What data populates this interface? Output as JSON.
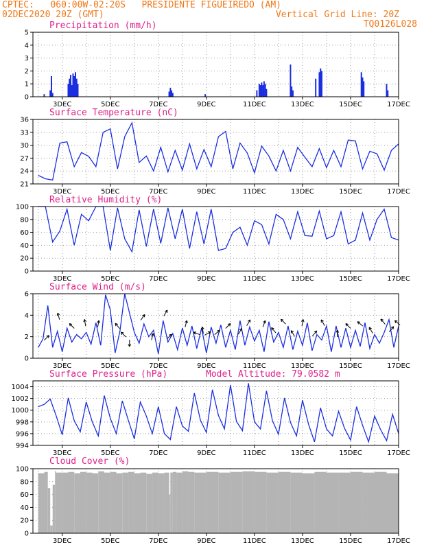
{
  "header": {
    "line1": "CPTEC:   060:00W-02:20S   PRESIDENTE FIGUEIREDO (AM)",
    "line2_left": "02DEC2020 20Z (GMT)",
    "line2_right": "Vertical Grid Line: 20Z",
    "line3_right": "TQ0126L028"
  },
  "x_tick_labels": [
    "3DEC",
    "5DEC",
    "7DEC",
    "9DEC",
    "11DEC",
    "13DEC",
    "15DEC",
    "17DEC"
  ],
  "x_tick_days": [
    3,
    5,
    7,
    9,
    11,
    13,
    15,
    17
  ],
  "colors": {
    "line": "#1a2ee0",
    "bar": "#1a2ee0",
    "cloud": "#b4b4b4",
    "title": "#e0208a",
    "header": "#f07818"
  },
  "chart_data": [
    {
      "type": "bar",
      "id": "precip",
      "title": "Precipitation (mm/h)",
      "ylim": [
        0,
        5
      ],
      "yticks": [
        0,
        1,
        2,
        3,
        4,
        5
      ],
      "x": [
        2.25,
        2.5,
        2.55,
        2.6,
        3.25,
        3.3,
        3.35,
        3.4,
        3.45,
        3.5,
        3.55,
        3.6,
        3.65,
        7.45,
        7.5,
        7.55,
        7.6,
        8.95,
        11.1,
        11.2,
        11.25,
        11.3,
        11.35,
        11.4,
        11.45,
        11.5,
        12.5,
        12.55,
        12.6,
        13.55,
        13.7,
        13.75,
        13.8,
        15.45,
        15.5,
        15.55,
        16.5,
        16.55
      ],
      "values": [
        0.2,
        0.5,
        1.6,
        0.3,
        1.0,
        1.4,
        1.7,
        0.9,
        1.8,
        1.6,
        1.9,
        1.4,
        1.0,
        0.4,
        0.7,
        0.5,
        0.3,
        0.2,
        0.5,
        1.0,
        0.9,
        1.1,
        0.9,
        1.2,
        1.0,
        0.6,
        2.5,
        0.8,
        0.5,
        1.4,
        1.9,
        2.2,
        2.0,
        1.9,
        1.5,
        1.2,
        1.0,
        0.5
      ]
    },
    {
      "type": "line",
      "id": "temp",
      "title": "Surface Temperature (nC)",
      "ylim": [
        21,
        36
      ],
      "yticks": [
        21,
        24,
        27,
        30,
        33,
        36
      ],
      "x": [
        2.0,
        2.3,
        2.6,
        2.9,
        3.2,
        3.5,
        3.8,
        4.1,
        4.4,
        4.7,
        5.0,
        5.3,
        5.6,
        5.9,
        6.2,
        6.5,
        6.8,
        7.1,
        7.4,
        7.7,
        8.0,
        8.3,
        8.6,
        8.9,
        9.2,
        9.5,
        9.8,
        10.1,
        10.4,
        10.7,
        11.0,
        11.3,
        11.6,
        11.9,
        12.2,
        12.5,
        12.8,
        13.1,
        13.4,
        13.7,
        14.0,
        14.3,
        14.6,
        14.9,
        15.2,
        15.5,
        15.8,
        16.1,
        16.4,
        16.7,
        17.0
      ],
      "values": [
        23.0,
        22.2,
        21.9,
        30.5,
        30.8,
        25.0,
        28.3,
        27.4,
        25.0,
        33.0,
        33.8,
        24.5,
        32.0,
        35.2,
        26.0,
        27.5,
        24.0,
        29.5,
        23.8,
        28.8,
        24.2,
        30.3,
        24.5,
        29.0,
        25.0,
        32.0,
        33.2,
        24.5,
        30.5,
        28.2,
        23.6,
        29.8,
        27.5,
        24.0,
        28.8,
        24.0,
        29.5,
        27.2,
        25.0,
        29.2,
        24.8,
        28.8,
        25.0,
        31.2,
        31.0,
        24.5,
        28.6,
        28.0,
        24.2,
        28.8,
        30.3
      ]
    },
    {
      "type": "line",
      "id": "rh",
      "title": "Relative Humidity (%)",
      "ylim": [
        0,
        100
      ],
      "yticks": [
        0,
        20,
        40,
        60,
        80,
        100
      ],
      "x": [
        2.0,
        2.3,
        2.6,
        2.9,
        3.2,
        3.5,
        3.8,
        4.1,
        4.4,
        4.7,
        5.0,
        5.3,
        5.6,
        5.9,
        6.2,
        6.5,
        6.8,
        7.1,
        7.4,
        7.7,
        8.0,
        8.3,
        8.6,
        8.9,
        9.2,
        9.5,
        9.8,
        10.1,
        10.4,
        10.7,
        11.0,
        11.3,
        11.6,
        11.9,
        12.2,
        12.5,
        12.8,
        13.1,
        13.4,
        13.7,
        14.0,
        14.3,
        14.6,
        14.9,
        15.2,
        15.5,
        15.8,
        16.1,
        16.4,
        16.7,
        17.0
      ],
      "values": [
        100,
        100,
        45,
        62,
        96,
        40,
        88,
        78,
        100,
        100,
        32,
        98,
        50,
        30,
        95,
        38,
        96,
        43,
        98,
        50,
        96,
        35,
        92,
        42,
        96,
        32,
        35,
        60,
        68,
        40,
        78,
        72,
        42,
        88,
        80,
        50,
        92,
        55,
        54,
        93,
        50,
        55,
        92,
        42,
        48,
        90,
        48,
        80,
        96,
        52,
        48
      ]
    },
    {
      "type": "line",
      "id": "wind",
      "title": "Surface Wind (m/s)",
      "ylim": [
        0,
        6
      ],
      "yticks": [
        0,
        2,
        4,
        6
      ],
      "x": [
        2.0,
        2.2,
        2.4,
        2.6,
        2.8,
        3.0,
        3.2,
        3.4,
        3.6,
        3.8,
        4.0,
        4.2,
        4.4,
        4.6,
        4.8,
        5.0,
        5.2,
        5.4,
        5.6,
        5.8,
        6.0,
        6.2,
        6.4,
        6.6,
        6.8,
        7.0,
        7.2,
        7.4,
        7.6,
        7.8,
        8.0,
        8.2,
        8.4,
        8.6,
        8.8,
        9.0,
        9.2,
        9.4,
        9.6,
        9.8,
        10.0,
        10.2,
        10.4,
        10.6,
        10.8,
        11.0,
        11.2,
        11.4,
        11.6,
        11.8,
        12.0,
        12.2,
        12.4,
        12.6,
        12.8,
        13.0,
        13.2,
        13.4,
        13.6,
        13.8,
        14.0,
        14.2,
        14.4,
        14.6,
        14.8,
        15.0,
        15.2,
        15.4,
        15.6,
        15.8,
        16.0,
        16.2,
        16.4,
        16.6,
        16.8,
        17.0
      ],
      "values": [
        1.0,
        1.8,
        4.9,
        1.0,
        2.5,
        0.6,
        2.8,
        1.5,
        2.2,
        1.8,
        2.4,
        1.3,
        3.3,
        1.2,
        5.9,
        4.5,
        0.5,
        2.5,
        6.0,
        4.2,
        2.4,
        1.4,
        3.2,
        2.0,
        2.6,
        0.4,
        3.5,
        1.5,
        2.3,
        0.8,
        2.8,
        1.2,
        3.0,
        0.9,
        2.8,
        0.5,
        2.9,
        1.4,
        3.1,
        1.0,
        2.6,
        0.8,
        3.5,
        1.2,
        2.9,
        1.6,
        2.6,
        0.6,
        3.4,
        1.5,
        2.4,
        1.0,
        3.0,
        0.8,
        2.5,
        1.2,
        3.3,
        0.7,
        2.2,
        1.7,
        3.0,
        0.6,
        3.0,
        1.0,
        2.8,
        1.0,
        2.6,
        1.1,
        3.3,
        0.9,
        2.2,
        1.4,
        2.4,
        3.6,
        1.0,
        3.0
      ]
    },
    {
      "type": "line",
      "id": "pres",
      "title": "Surface Pressure (hPa)",
      "annotation": "Model Altitude: 79.0582 m",
      "ylim": [
        994,
        1005
      ],
      "yticks": [
        994,
        996,
        998,
        1000,
        1002,
        1004
      ],
      "x": [
        2.0,
        2.25,
        2.5,
        2.75,
        3.0,
        3.25,
        3.5,
        3.75,
        4.0,
        4.25,
        4.5,
        4.75,
        5.0,
        5.25,
        5.5,
        5.75,
        6.0,
        6.25,
        6.5,
        6.75,
        7.0,
        7.25,
        7.5,
        7.75,
        8.0,
        8.25,
        8.5,
        8.75,
        9.0,
        9.25,
        9.5,
        9.75,
        10.0,
        10.25,
        10.5,
        10.75,
        11.0,
        11.25,
        11.5,
        11.75,
        12.0,
        12.25,
        12.5,
        12.75,
        13.0,
        13.25,
        13.5,
        13.75,
        14.0,
        14.25,
        14.5,
        14.75,
        15.0,
        15.25,
        15.5,
        15.75,
        16.0,
        16.25,
        16.5,
        16.75,
        17.0
      ],
      "values": [
        1000.6,
        1001.0,
        1001.9,
        999.0,
        995.8,
        1002.1,
        998.2,
        996.3,
        1001.4,
        998.0,
        995.6,
        1002.5,
        998.6,
        996.0,
        1001.6,
        998.3,
        995.1,
        1001.4,
        999.0,
        996.0,
        1000.6,
        996.0,
        995.0,
        1000.6,
        997.3,
        996.4,
        1002.9,
        998.3,
        996.2,
        1003.5,
        999.1,
        996.8,
        1004.3,
        998.1,
        996.5,
        1004.6,
        998.0,
        996.8,
        1003.3,
        998.2,
        995.9,
        1002.1,
        997.9,
        995.6,
        1001.7,
        997.6,
        994.6,
        1000.4,
        996.8,
        995.6,
        999.8,
        996.9,
        994.9,
        1000.6,
        997.4,
        994.6,
        999.0,
        996.7,
        994.8,
        999.3,
        996.0
      ]
    },
    {
      "type": "area",
      "id": "cloud",
      "title": "Cloud Cover (%)",
      "ylim": [
        0,
        100
      ],
      "yticks": [
        0,
        20,
        40,
        60,
        80,
        100
      ],
      "x": [
        2.0,
        2.25,
        2.4,
        2.5,
        2.6,
        2.7,
        2.75,
        3.0,
        3.25,
        3.5,
        3.75,
        4.0,
        4.25,
        4.5,
        4.75,
        5.0,
        5.25,
        5.5,
        5.75,
        6.0,
        6.25,
        6.5,
        6.75,
        7.0,
        7.25,
        7.45,
        7.5,
        7.6,
        7.75,
        8.0,
        8.25,
        8.5,
        9.0,
        9.5,
        10.0,
        10.5,
        11.0,
        11.5,
        12.0,
        12.5,
        13.0,
        13.5,
        14.0,
        14.5,
        15.0,
        15.5,
        16.0,
        16.5,
        17.0
      ],
      "values": [
        93,
        95,
        70,
        12,
        75,
        96,
        94,
        94,
        95,
        93,
        95,
        94,
        93,
        96,
        94,
        95,
        93,
        94,
        95,
        93,
        94,
        92,
        94,
        93,
        94,
        60,
        94,
        95,
        94,
        96,
        95,
        94,
        95,
        94,
        95,
        96,
        95,
        94,
        95,
        94,
        93,
        95,
        94,
        94,
        95,
        94,
        95,
        93,
        94
      ]
    }
  ],
  "wind_arrows": [
    {
      "x": 2.35,
      "y": 1.9,
      "dir": 45
    },
    {
      "x": 2.85,
      "y": 3.9,
      "dir": -15
    },
    {
      "x": 3.4,
      "y": 3.0,
      "dir": -45
    },
    {
      "x": 3.95,
      "y": 3.3,
      "dir": -10
    },
    {
      "x": 4.5,
      "y": 3.2,
      "dir": 10
    },
    {
      "x": 5.3,
      "y": 3.0,
      "dir": -40
    },
    {
      "x": 5.55,
      "y": 2.2,
      "dir": -45
    },
    {
      "x": 5.8,
      "y": 1.4,
      "dir": 180
    },
    {
      "x": 6.35,
      "y": 3.8,
      "dir": 35
    },
    {
      "x": 6.75,
      "y": 2.0,
      "dir": 15
    },
    {
      "x": 7.3,
      "y": 4.2,
      "dir": 30
    },
    {
      "x": 7.45,
      "y": 2.0,
      "dir": 45
    },
    {
      "x": 8.15,
      "y": 3.2,
      "dir": 15
    },
    {
      "x": 8.6,
      "y": 2.3,
      "dir": -70
    },
    {
      "x": 8.85,
      "y": 2.6,
      "dir": -10
    },
    {
      "x": 9.05,
      "y": 2.3,
      "dir": 60
    },
    {
      "x": 9.45,
      "y": 2.4,
      "dir": 50
    },
    {
      "x": 9.9,
      "y": 3.0,
      "dir": 45
    },
    {
      "x": 10.4,
      "y": 2.5,
      "dir": 30
    },
    {
      "x": 10.75,
      "y": 3.3,
      "dir": 30
    },
    {
      "x": 11.4,
      "y": 3.2,
      "dir": 20
    },
    {
      "x": 11.8,
      "y": 2.6,
      "dir": -40
    },
    {
      "x": 12.2,
      "y": 3.4,
      "dir": -45
    },
    {
      "x": 12.6,
      "y": 2.3,
      "dir": -30
    },
    {
      "x": 13.0,
      "y": 3.3,
      "dir": 10
    },
    {
      "x": 13.5,
      "y": 2.3,
      "dir": 40
    },
    {
      "x": 13.85,
      "y": 3.3,
      "dir": -30
    },
    {
      "x": 14.45,
      "y": 2.3,
      "dir": 0
    },
    {
      "x": 14.9,
      "y": 3.0,
      "dir": -45
    },
    {
      "x": 15.4,
      "y": 3.2,
      "dir": -50
    },
    {
      "x": 15.85,
      "y": 2.6,
      "dir": -30
    },
    {
      "x": 16.35,
      "y": 3.4,
      "dir": -40
    },
    {
      "x": 16.7,
      "y": 2.7,
      "dir": 40
    },
    {
      "x": 16.95,
      "y": 3.3,
      "dir": -50
    }
  ]
}
